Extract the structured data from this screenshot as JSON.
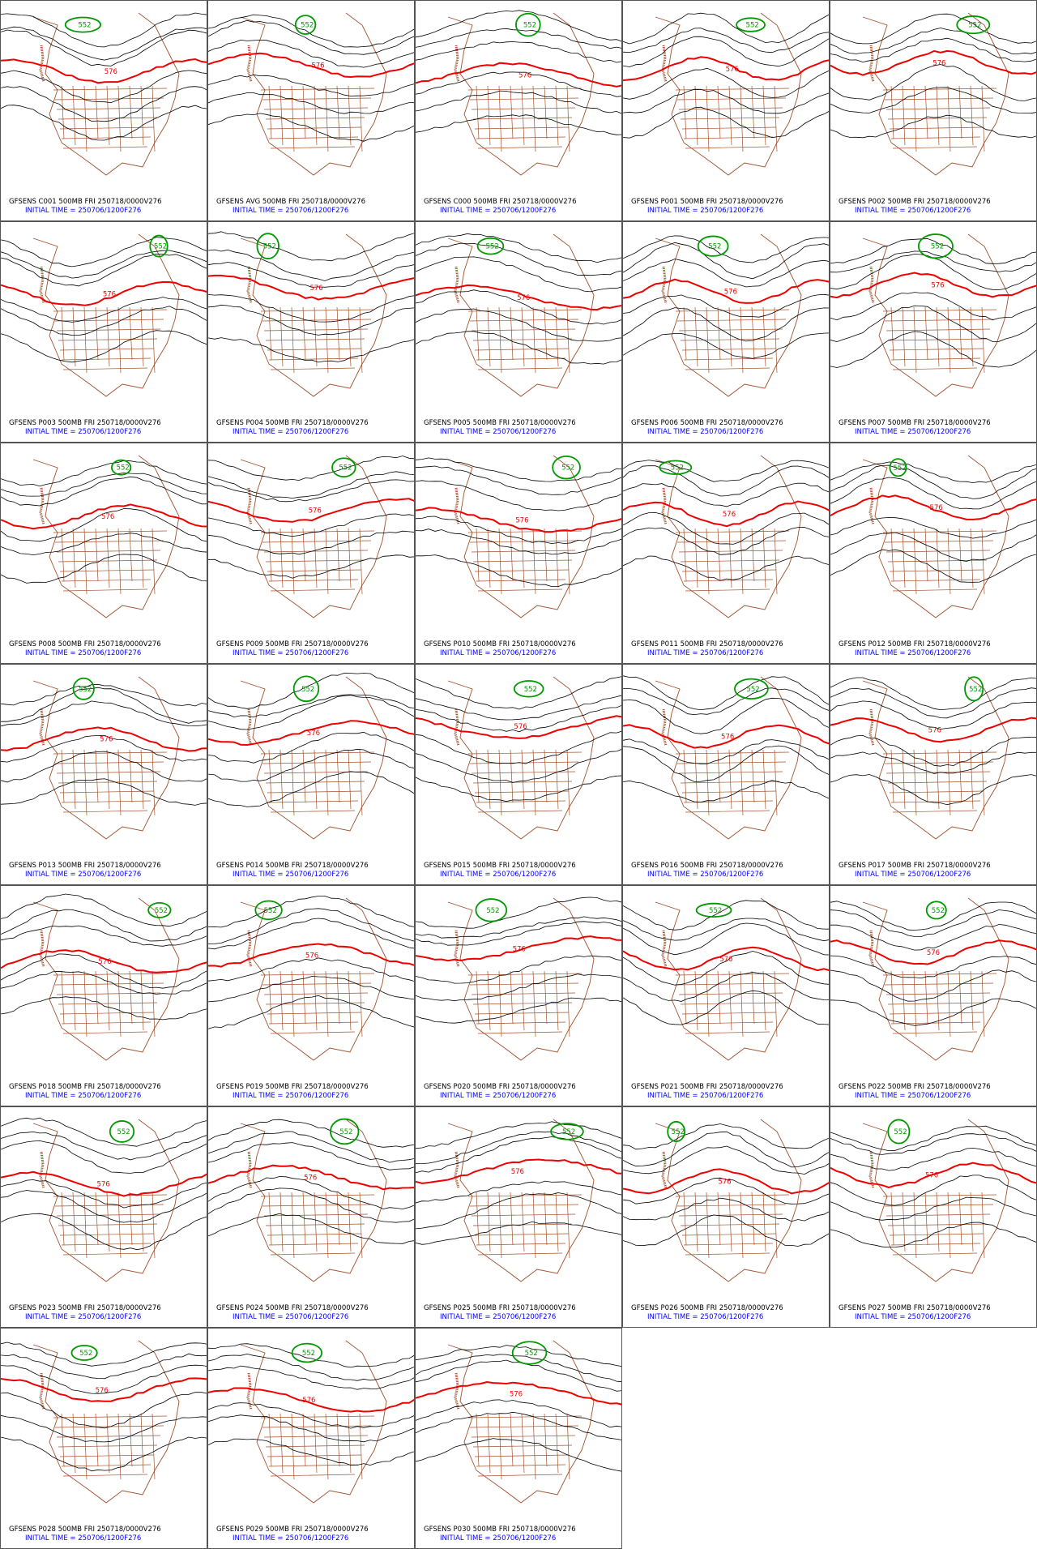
{
  "panels": [
    {
      "title": "GFSENS C001 500MB FRI 250718/0000V276",
      "initial_time": "INITIAL TIME = 250706/1200F276",
      "contour_labels": [
        "576",
        "552"
      ]
    },
    {
      "title": "GFSENS AVG 500MB FRI 250718/0000V276",
      "initial_time": "INITIAL TIME = 250706/1200F276",
      "contour_labels": [
        "576",
        "552"
      ]
    },
    {
      "title": "GFSENS C000 500MB FRI 250718/0000V276",
      "initial_time": "INITIAL TIME = 250706/1200F276",
      "contour_labels": [
        "576",
        "552"
      ]
    },
    {
      "title": "GFSENS P001 500MB FRI 250718/0000V276",
      "initial_time": "INITIAL TIME = 250706/1200F276",
      "contour_labels": [
        "576",
        "552"
      ]
    },
    {
      "title": "GFSENS P002 500MB FRI 250718/0000V276",
      "initial_time": "INITIAL TIME = 250706/1200F276",
      "contour_labels": [
        "576",
        "552"
      ]
    },
    {
      "title": "GFSENS P003 500MB FRI 250718/0000V276",
      "initial_time": "INITIAL TIME = 250706/1200F276",
      "contour_labels": [
        "576",
        "552"
      ]
    },
    {
      "title": "GFSENS P004 500MB FRI 250718/0000V276",
      "initial_time": "INITIAL TIME = 250706/1200F276",
      "contour_labels": [
        "576",
        "552"
      ]
    },
    {
      "title": "GFSENS P005 500MB FRI 250718/0000V276",
      "initial_time": "INITIAL TIME = 250706/1200F276",
      "contour_labels": [
        "576",
        "552"
      ]
    },
    {
      "title": "GFSENS P006 500MB FRI 250718/0000V276",
      "initial_time": "INITIAL TIME = 250706/1200F276",
      "contour_labels": [
        "576",
        "552"
      ]
    },
    {
      "title": "GFSENS P007 500MB FRI 250718/0000V276",
      "initial_time": "INITIAL TIME = 250706/1200F276",
      "contour_labels": [
        "576",
        "552"
      ]
    },
    {
      "title": "GFSENS P008 500MB FRI 250718/0000V276",
      "initial_time": "INITIAL TIME = 250706/1200F276",
      "contour_labels": [
        "576",
        "552"
      ]
    },
    {
      "title": "GFSENS P009 500MB FRI 250718/0000V276",
      "initial_time": "INITIAL TIME = 250706/1200F276",
      "contour_labels": [
        "576",
        "552"
      ]
    },
    {
      "title": "GFSENS P010 500MB FRI 250718/0000V276",
      "initial_time": "INITIAL TIME = 250706/1200F276",
      "contour_labels": [
        "576",
        "552"
      ]
    },
    {
      "title": "GFSENS P011 500MB FRI 250718/0000V276",
      "initial_time": "INITIAL TIME = 250706/1200F276",
      "contour_labels": [
        "576",
        "552"
      ]
    },
    {
      "title": "GFSENS P012 500MB FRI 250718/0000V276",
      "initial_time": "INITIAL TIME = 250706/1200F276",
      "contour_labels": [
        "576",
        "552"
      ]
    },
    {
      "title": "GFSENS P013 500MB FRI 250718/0000V276",
      "initial_time": "INITIAL TIME = 250706/1200F276",
      "contour_labels": [
        "576",
        "552"
      ]
    },
    {
      "title": "GFSENS P014 500MB FRI 250718/0000V276",
      "initial_time": "INITIAL TIME = 250706/1200F276",
      "contour_labels": [
        "576",
        "552"
      ]
    },
    {
      "title": "GFSENS P015 500MB FRI 250718/0000V276",
      "initial_time": "INITIAL TIME = 250706/1200F276",
      "contour_labels": [
        "576",
        "552"
      ]
    },
    {
      "title": "GFSENS P016 500MB FRI 250718/0000V276",
      "initial_time": "INITIAL TIME = 250706/1200F276",
      "contour_labels": [
        "576",
        "552"
      ]
    },
    {
      "title": "GFSENS P017 500MB FRI 250718/0000V276",
      "initial_time": "INITIAL TIME = 250706/1200F276",
      "contour_labels": [
        "576",
        "552"
      ]
    },
    {
      "title": "GFSENS P018 500MB FRI 250718/0000V276",
      "initial_time": "INITIAL TIME = 250706/1200F276",
      "contour_labels": [
        "576",
        "552"
      ]
    },
    {
      "title": "GFSENS P019 500MB FRI 250718/0000V276",
      "initial_time": "INITIAL TIME = 250706/1200F276",
      "contour_labels": [
        "576",
        "552"
      ]
    },
    {
      "title": "GFSENS P020 500MB FRI 250718/0000V276",
      "initial_time": "INITIAL TIME = 250706/1200F276",
      "contour_labels": [
        "576",
        "552"
      ]
    },
    {
      "title": "GFSENS P021 500MB FRI 250718/0000V276",
      "initial_time": "INITIAL TIME = 250706/1200F276",
      "contour_labels": [
        "576",
        "552"
      ]
    },
    {
      "title": "GFSENS P022 500MB FRI 250718/0000V276",
      "initial_time": "INITIAL TIME = 250706/1200F276",
      "contour_labels": [
        "576",
        "552"
      ]
    },
    {
      "title": "GFSENS P023 500MB FRI 250718/0000V276",
      "initial_time": "INITIAL TIME = 250706/1200F276",
      "contour_labels": [
        "576",
        "552"
      ]
    },
    {
      "title": "GFSENS P024 500MB FRI 250718/0000V276",
      "initial_time": "INITIAL TIME = 250706/1200F276",
      "contour_labels": [
        "576",
        "552"
      ]
    },
    {
      "title": "GFSENS P025 500MB FRI 250718/0000V276",
      "initial_time": "INITIAL TIME = 250706/1200F276",
      "contour_labels": [
        "576",
        "552"
      ]
    },
    {
      "title": "GFSENS P026 500MB FRI 250718/0000V276",
      "initial_time": "INITIAL TIME = 250706/1200F276",
      "contour_labels": [
        "576",
        "552"
      ]
    },
    {
      "title": "GFSENS P027 500MB FRI 250718/0000V276",
      "initial_time": "INITIAL TIME = 250706/1200F276",
      "contour_labels": [
        "576",
        "552"
      ]
    },
    {
      "title": "GFSENS P028 500MB FRI 250718/0000V276",
      "initial_time": "INITIAL TIME = 250706/1200F276",
      "contour_labels": [
        "576",
        "552"
      ]
    },
    {
      "title": "GFSENS P029 500MB FRI 250718/0000V276",
      "initial_time": "INITIAL TIME = 250706/1200F276",
      "contour_labels": [
        "576",
        "552"
      ]
    },
    {
      "title": "GFSENS P030 500MB FRI 250718/0000V276",
      "initial_time": "INITIAL TIME = 250706/1200F276",
      "contour_labels": [
        "576",
        "552"
      ]
    }
  ]
}
